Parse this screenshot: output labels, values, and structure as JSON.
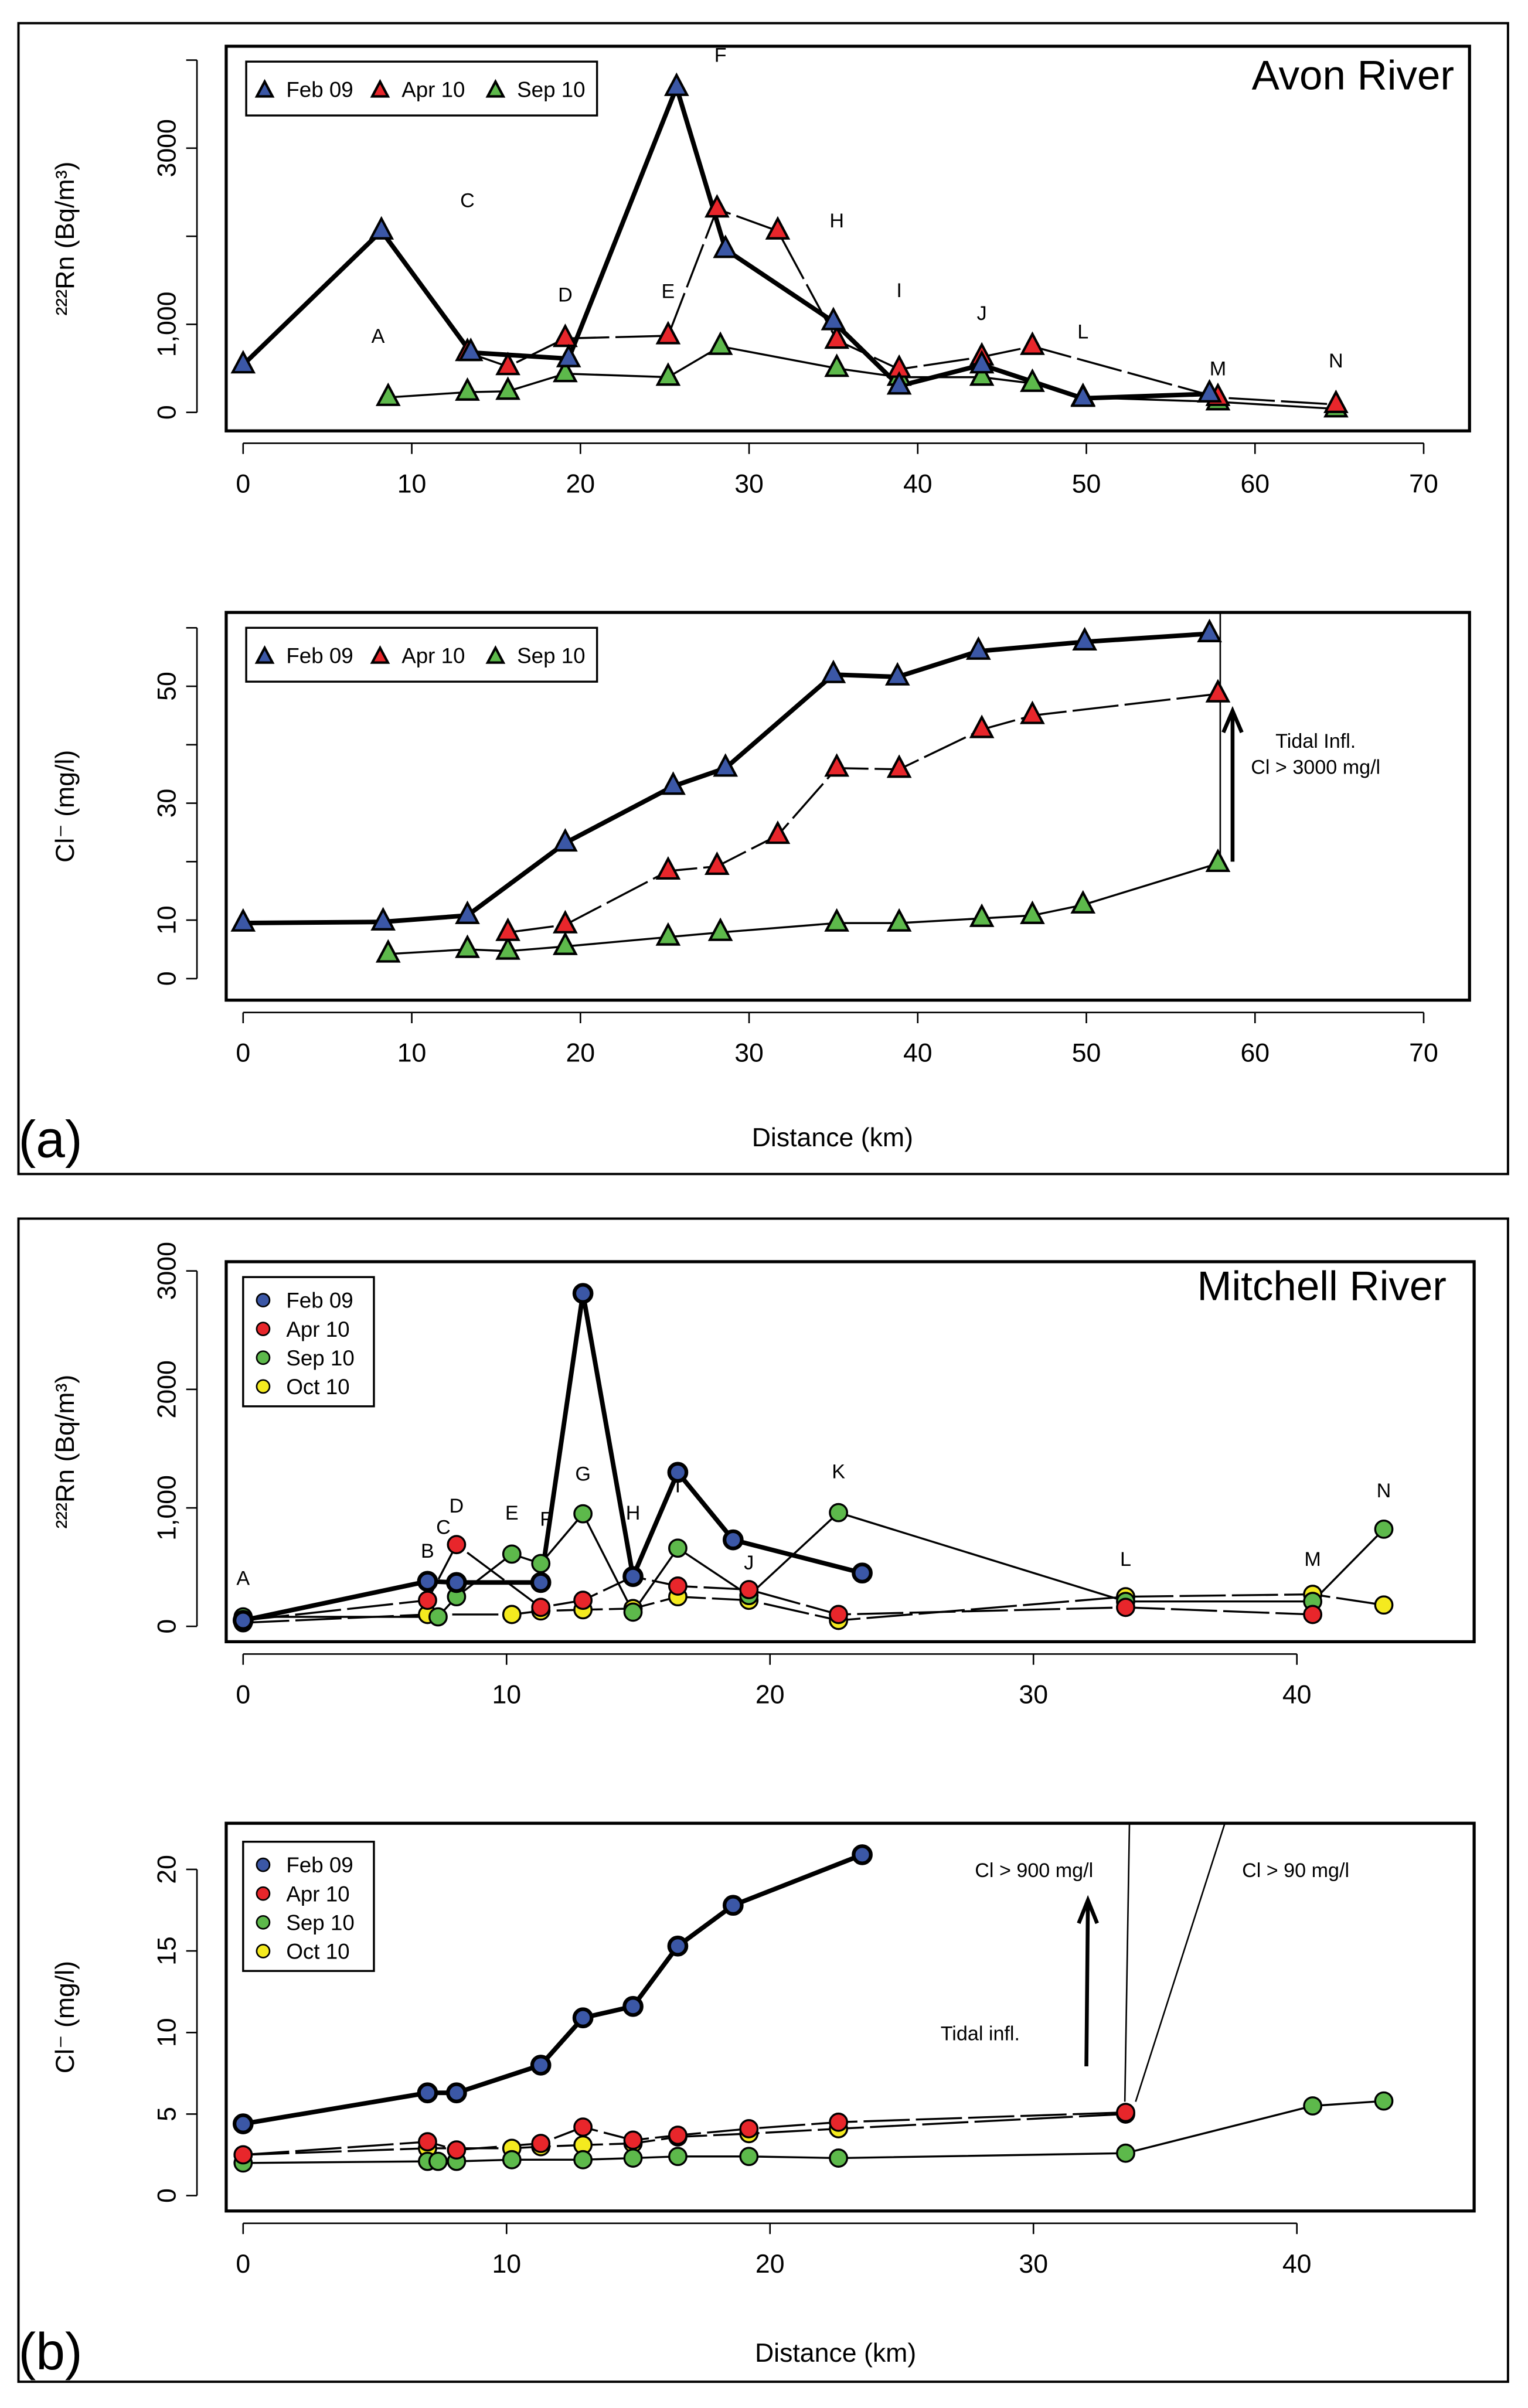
{
  "panels": {
    "a": "(a)",
    "b": "(b)"
  },
  "xlabel": "Distance (km)",
  "colors": {
    "Feb 09": "#3b57a6",
    "Apr 10": "#e8262b",
    "Sep 10": "#5db94b",
    "Oct 10": "#f4ea1f"
  },
  "chart_data": [
    {
      "type": "line",
      "marker": "triangle",
      "title": "Avon River",
      "ylabel": "²²²Rn (Bq/m³)",
      "xlabel": "",
      "xlim": [
        0,
        70
      ],
      "ylim": [
        0,
        4000
      ],
      "xticks": [
        {
          "v": 0,
          "label": "0"
        },
        {
          "v": 10,
          "label": "10"
        },
        {
          "v": 20,
          "label": "20"
        },
        {
          "v": 30,
          "label": "30"
        },
        {
          "v": 40,
          "label": "40"
        },
        {
          "v": 50,
          "label": "50"
        },
        {
          "v": 60,
          "label": "60"
        },
        {
          "v": 70,
          "label": "70"
        }
      ],
      "yticks": [
        {
          "v": 0,
          "label": "0"
        },
        {
          "v": 1000,
          "label": "1,000"
        },
        {
          "v": 2000,
          "label": ""
        },
        {
          "v": 3000,
          "label": "3000"
        },
        {
          "v": 4000,
          "label": ""
        }
      ],
      "legend": [
        "Feb 09",
        "Apr 10",
        "Sep 10"
      ],
      "series": [
        {
          "name": "Feb 09",
          "points": [
            [
              0,
              540
            ],
            [
              8.2,
              2060
            ],
            [
              13.5,
              680
            ],
            [
              19.3,
              610
            ],
            [
              25.7,
              3690
            ],
            [
              28.6,
              1850
            ],
            [
              35,
              1030
            ],
            [
              38.9,
              300
            ],
            [
              43.8,
              540
            ],
            [
              49.8,
              160
            ],
            [
              57.3,
              210
            ]
          ]
        },
        {
          "name": "Apr 10",
          "points": [
            [
              13.3,
              680
            ],
            [
              15.7,
              520
            ],
            [
              19.1,
              840
            ],
            [
              25.2,
              870
            ],
            [
              28.1,
              2310
            ],
            [
              31.7,
              2060
            ],
            [
              35.2,
              820
            ],
            [
              38.9,
              490
            ],
            [
              43.8,
              630
            ],
            [
              46.8,
              750
            ],
            [
              57.8,
              170
            ],
            [
              64.8,
              90
            ]
          ]
        },
        {
          "name": "Sep 10",
          "points": [
            [
              8.6,
              170
            ],
            [
              13.3,
              230
            ],
            [
              15.7,
              240
            ],
            [
              19.1,
              440
            ],
            [
              25.2,
              400
            ],
            [
              28.3,
              750
            ],
            [
              35.2,
              500
            ],
            [
              38.9,
              400
            ],
            [
              43.8,
              400
            ],
            [
              46.8,
              330
            ],
            [
              49.8,
              170
            ],
            [
              57.8,
              120
            ],
            [
              64.8,
              40
            ]
          ]
        }
      ],
      "site_labels": [
        {
          "label": "A",
          "x": 8,
          "y": 790
        },
        {
          "label": "C",
          "x": 13.3,
          "y": 2330
        },
        {
          "label": "D",
          "x": 19.1,
          "y": 1260
        },
        {
          "label": "E",
          "x": 25.2,
          "y": 1300
        },
        {
          "label": "F",
          "x": 28.3,
          "y": 3980
        },
        {
          "label": "H",
          "x": 35.2,
          "y": 2100
        },
        {
          "label": "I",
          "x": 38.9,
          "y": 1310
        },
        {
          "label": "J",
          "x": 43.8,
          "y": 1050
        },
        {
          "label": "L",
          "x": 49.8,
          "y": 840
        },
        {
          "label": "M",
          "x": 57.8,
          "y": 420
        },
        {
          "label": "N",
          "x": 64.8,
          "y": 510
        }
      ],
      "annotations": []
    },
    {
      "type": "line",
      "marker": "triangle",
      "title": "",
      "ylabel": "Cl⁻ (mg/l)",
      "xlabel": "",
      "xlim": [
        0,
        70
      ],
      "ylim": [
        0,
        60
      ],
      "xticks": [
        {
          "v": 0,
          "label": "0"
        },
        {
          "v": 10,
          "label": "10"
        },
        {
          "v": 20,
          "label": "20"
        },
        {
          "v": 30,
          "label": "30"
        },
        {
          "v": 40,
          "label": "40"
        },
        {
          "v": 50,
          "label": "50"
        },
        {
          "v": 60,
          "label": "60"
        },
        {
          "v": 70,
          "label": "70"
        }
      ],
      "yticks": [
        {
          "v": 0,
          "label": "0"
        },
        {
          "v": 10,
          "label": "10"
        },
        {
          "v": 20,
          "label": ""
        },
        {
          "v": 30,
          "label": "30"
        },
        {
          "v": 40,
          "label": ""
        },
        {
          "v": 50,
          "label": "50"
        },
        {
          "v": 60,
          "label": ""
        }
      ],
      "legend": [
        "Feb 09",
        "Apr 10",
        "Sep 10"
      ],
      "series": [
        {
          "name": "Feb 09",
          "points": [
            [
              0,
              9.5
            ],
            [
              8.3,
              9.7
            ],
            [
              13.3,
              10.8
            ],
            [
              19.1,
              23.2
            ],
            [
              25.5,
              32.9
            ],
            [
              28.6,
              36
            ],
            [
              35,
              52
            ],
            [
              38.8,
              51.6
            ],
            [
              43.6,
              56
            ],
            [
              49.9,
              57.6
            ],
            [
              57.3,
              59
            ]
          ]
        },
        {
          "name": "Apr 10",
          "points": [
            [
              15.7,
              7.9
            ],
            [
              19.1,
              9.2
            ],
            [
              25.2,
              18.4
            ],
            [
              28.1,
              19.2
            ],
            [
              31.7,
              24.5
            ],
            [
              35.2,
              36
            ],
            [
              38.9,
              35.8
            ],
            [
              43.8,
              42.6
            ],
            [
              46.8,
              45
            ],
            [
              57.8,
              48.7
            ]
          ]
        },
        {
          "name": "Sep 10",
          "points": [
            [
              8.6,
              4.2
            ],
            [
              13.3,
              5
            ],
            [
              15.7,
              4.7
            ],
            [
              19.1,
              5.5
            ],
            [
              25.2,
              7.1
            ],
            [
              28.3,
              7.9
            ],
            [
              35.2,
              9.5
            ],
            [
              38.9,
              9.5
            ],
            [
              43.8,
              10.3
            ],
            [
              46.8,
              10.8
            ],
            [
              49.8,
              12.6
            ],
            [
              57.8,
              19.7
            ]
          ]
        }
      ],
      "site_labels": [],
      "annotations": [
        "Tidal Infl.",
        "Cl > 3000 mg/l"
      ]
    },
    {
      "type": "line",
      "marker": "circle",
      "title": "Mitchell River",
      "ylabel": "²²²Rn (Bq/m³)",
      "xlabel": "",
      "xlim": [
        0,
        45
      ],
      "ylim": [
        0,
        3000
      ],
      "xticks": [
        {
          "v": 0,
          "label": "0"
        },
        {
          "v": 10,
          "label": "10"
        },
        {
          "v": 20,
          "label": "20"
        },
        {
          "v": 30,
          "label": "30"
        },
        {
          "v": 40,
          "label": "40"
        }
      ],
      "yticks": [
        {
          "v": 0,
          "label": "0"
        },
        {
          "v": 1000,
          "label": "1,000"
        },
        {
          "v": 2000,
          "label": "2000"
        },
        {
          "v": 3000,
          "label": "3000"
        }
      ],
      "legend": [
        "Feb 09",
        "Apr 10",
        "Sep 10",
        "Oct 10"
      ],
      "series": [
        {
          "name": "Feb 09",
          "points": [
            [
              0,
              50
            ],
            [
              7,
              380
            ],
            [
              8.1,
              370
            ],
            [
              11.3,
              370
            ],
            [
              12.9,
              2810
            ],
            [
              14.8,
              420
            ],
            [
              16.5,
              1300
            ],
            [
              18.6,
              730
            ],
            [
              23.5,
              450
            ]
          ]
        },
        {
          "name": "Apr 10",
          "points": [
            [
              0,
              50
            ],
            [
              7,
              220
            ],
            [
              8.1,
              690
            ],
            [
              11.3,
              160
            ],
            [
              12.9,
              220
            ],
            [
              14.8,
              420
            ],
            [
              16.5,
              340
            ],
            [
              19.2,
              310
            ],
            [
              22.6,
              100
            ],
            [
              33.5,
              160
            ],
            [
              40.6,
              100
            ]
          ]
        },
        {
          "name": "Sep 10",
          "points": [
            [
              0,
              80
            ],
            [
              7.4,
              80
            ],
            [
              8.1,
              250
            ],
            [
              10.2,
              610
            ],
            [
              11.3,
              530
            ],
            [
              12.9,
              950
            ],
            [
              14.8,
              120
            ],
            [
              16.5,
              660
            ],
            [
              19.2,
              260
            ],
            [
              22.6,
              960
            ],
            [
              33.5,
              210
            ],
            [
              40.6,
              210
            ],
            [
              43.3,
              820
            ]
          ]
        },
        {
          "name": "Oct 10",
          "points": [
            [
              0,
              30
            ],
            [
              7,
              100
            ],
            [
              10.2,
              100
            ],
            [
              11.3,
              130
            ],
            [
              12.9,
              140
            ],
            [
              14.8,
              150
            ],
            [
              16.5,
              250
            ],
            [
              19.2,
              220
            ],
            [
              22.6,
              50
            ],
            [
              33.5,
              250
            ],
            [
              40.6,
              270
            ],
            [
              43.3,
              180
            ]
          ]
        }
      ],
      "site_labels": [
        {
          "label": "A",
          "x": 0,
          "y": 350
        },
        {
          "label": "B",
          "x": 7,
          "y": 580
        },
        {
          "label": "C",
          "x": 7.6,
          "y": 780
        },
        {
          "label": "D",
          "x": 8.1,
          "y": 960
        },
        {
          "label": "E",
          "x": 10.2,
          "y": 900
        },
        {
          "label": "F",
          "x": 11.5,
          "y": 850
        },
        {
          "label": "G",
          "x": 12.9,
          "y": 1230
        },
        {
          "label": "H",
          "x": 14.8,
          "y": 900
        },
        {
          "label": "I",
          "x": 16.5,
          "y": 1130
        },
        {
          "label": "J",
          "x": 19.2,
          "y": 480
        },
        {
          "label": "K",
          "x": 22.6,
          "y": 1250
        },
        {
          "label": "L",
          "x": 33.5,
          "y": 510
        },
        {
          "label": "M",
          "x": 40.6,
          "y": 510
        },
        {
          "label": "N",
          "x": 43.3,
          "y": 1090
        }
      ],
      "annotations": []
    },
    {
      "type": "line",
      "marker": "circle",
      "title": "",
      "ylabel": "Cl⁻ (mg/l)",
      "xlabel": "",
      "xlim": [
        0,
        45
      ],
      "ylim": [
        0,
        20
      ],
      "xticks": [
        {
          "v": 0,
          "label": "0"
        },
        {
          "v": 10,
          "label": "10"
        },
        {
          "v": 20,
          "label": "20"
        },
        {
          "v": 30,
          "label": "30"
        },
        {
          "v": 40,
          "label": "40"
        }
      ],
      "yticks": [
        {
          "v": 0,
          "label": "0"
        },
        {
          "v": 5,
          "label": "5"
        },
        {
          "v": 10,
          "label": "10"
        },
        {
          "v": 15,
          "label": "15"
        },
        {
          "v": 20,
          "label": "20"
        }
      ],
      "legend": [
        "Feb 09",
        "Apr 10",
        "Sep 10",
        "Oct 10"
      ],
      "series": [
        {
          "name": "Feb 09",
          "points": [
            [
              0,
              4.4
            ],
            [
              7,
              6.3
            ],
            [
              8.1,
              6.3
            ],
            [
              11.3,
              8
            ],
            [
              12.9,
              10.9
            ],
            [
              14.8,
              11.6
            ],
            [
              16.5,
              15.3
            ],
            [
              18.6,
              17.8
            ],
            [
              23.5,
              20.9
            ]
          ]
        },
        {
          "name": "Apr 10",
          "points": [
            [
              0,
              2.5
            ],
            [
              7,
              3.3
            ],
            [
              8.1,
              2.8
            ],
            [
              11.3,
              3.2
            ],
            [
              12.9,
              4.2
            ],
            [
              14.8,
              3.4
            ],
            [
              16.5,
              3.7
            ],
            [
              19.2,
              4.1
            ],
            [
              22.6,
              4.5
            ],
            [
              33.5,
              5.1
            ]
          ]
        },
        {
          "name": "Sep 10",
          "points": [
            [
              0,
              2
            ],
            [
              7,
              2.1
            ],
            [
              7.4,
              2.1
            ],
            [
              8.1,
              2.1
            ],
            [
              10.2,
              2.2
            ],
            [
              12.9,
              2.2
            ],
            [
              14.8,
              2.3
            ],
            [
              16.5,
              2.4
            ],
            [
              19.2,
              2.4
            ],
            [
              22.6,
              2.3
            ],
            [
              33.5,
              2.6
            ],
            [
              40.6,
              5.5
            ],
            [
              43.3,
              5.8
            ]
          ]
        },
        {
          "name": "Oct 10",
          "points": [
            [
              0,
              2.5
            ],
            [
              7,
              2.9
            ],
            [
              10.2,
              2.9
            ],
            [
              11.3,
              3
            ],
            [
              12.9,
              3.1
            ],
            [
              14.8,
              3.2
            ],
            [
              16.5,
              3.6
            ],
            [
              19.2,
              3.8
            ],
            [
              22.6,
              4.1
            ],
            [
              33.5,
              5
            ]
          ]
        }
      ],
      "site_labels": [],
      "annotations": [
        "Cl > 900 mg/l",
        "Cl > 90 mg/l",
        "Tidal infl."
      ]
    }
  ]
}
